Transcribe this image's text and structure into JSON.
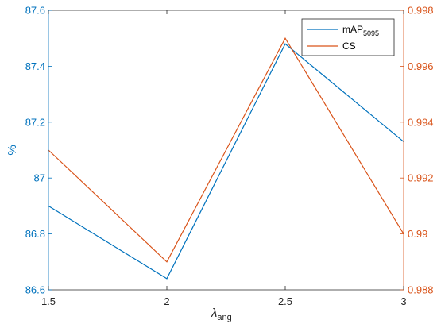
{
  "chart_data": {
    "type": "line",
    "x": [
      1.5,
      2,
      2.5,
      3
    ],
    "xlim": [
      1.5,
      3
    ],
    "xticks": [
      "1.5",
      "2",
      "2.5",
      "3"
    ],
    "xlabel": {
      "main": "λ",
      "sub": "ang"
    },
    "ylabel_left": "%",
    "ylim_left": [
      86.6,
      87.6
    ],
    "yticks_left": [
      "86.6",
      "86.8",
      "87",
      "87.2",
      "87.4",
      "87.6"
    ],
    "ylim_right": [
      0.988,
      0.998
    ],
    "yticks_right": [
      "0.988",
      "0.99",
      "0.992",
      "0.994",
      "0.996",
      "0.998"
    ],
    "grid": false,
    "legend_position": "top-right",
    "series": [
      {
        "name": "mAP",
        "name_sub": "5095",
        "axis": "left",
        "color": "#0072BD",
        "values": [
          86.9,
          86.64,
          87.48,
          87.13
        ]
      },
      {
        "name": "CS",
        "axis": "right",
        "color": "#D95319",
        "values": [
          0.993,
          0.989,
          0.997,
          0.99
        ]
      }
    ],
    "colors": {
      "left_axis": "#0072BD",
      "right_axis": "#D95319",
      "frame": "#262626"
    }
  }
}
